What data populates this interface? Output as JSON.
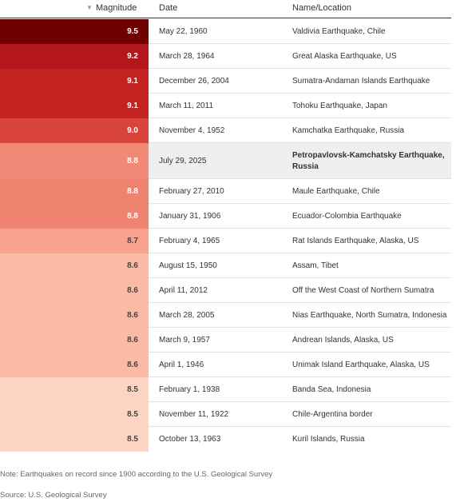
{
  "table": {
    "columns": [
      "Magnitude",
      "Date",
      "Name/Location"
    ],
    "rows": [
      {
        "cells": [
          "9.5",
          "May 22, 1960",
          "Valdivia Earthquake, Chile"
        ],
        "color": "#6e0000",
        "text_color": "#ffffff"
      },
      {
        "cells": [
          "9.2",
          "March 28, 1964",
          "Great Alaska Earthquake, US"
        ],
        "color": "#b3171b",
        "text_color": "#ffffff"
      },
      {
        "cells": [
          "9.1",
          "December 26, 2004",
          "Sumatra-Andaman Islands Earthquake"
        ],
        "color": "#c42322",
        "text_color": "#ffffff"
      },
      {
        "cells": [
          "9.1",
          "March 11, 2011",
          "Tohoku Earthquake, Japan"
        ],
        "color": "#c42322",
        "text_color": "#ffffff"
      },
      {
        "cells": [
          "9.0",
          "November 4, 1952",
          "Kamchatka Earthquake, Russia"
        ],
        "color": "#d8443a",
        "text_color": "#ffffff"
      },
      {
        "cells": [
          "8.8",
          "July 29, 2025",
          "Petropavlovsk-Kamchatsky Earthquake, Russia"
        ],
        "color": "#f08a77",
        "text_color": "#ffffff",
        "highlight": true
      },
      {
        "cells": [
          "8.8",
          "February 27, 2010",
          "Maule Earthquake, Chile"
        ],
        "color": "#ef8370",
        "text_color": "#ffffff"
      },
      {
        "cells": [
          "8.8",
          "January 31, 1906",
          "Ecuador-Colombia Earthquake"
        ],
        "color": "#ef8370",
        "text_color": "#ffffff"
      },
      {
        "cells": [
          "8.7",
          "February 4, 1965",
          "Rat Islands Earthquake, Alaska, US"
        ],
        "color": "#f7a18e",
        "text_color": "#444444"
      },
      {
        "cells": [
          "8.6",
          "August 15, 1950",
          "Assam, Tibet"
        ],
        "color": "#fbb9a6",
        "text_color": "#444444"
      },
      {
        "cells": [
          "8.6",
          "April 11, 2012",
          "Off the West Coast of Northern Sumatra"
        ],
        "color": "#fbb9a6",
        "text_color": "#444444"
      },
      {
        "cells": [
          "8.6",
          "March 28, 2005",
          "Nias Earthquake, North Sumatra, Indonesia"
        ],
        "color": "#fbb9a6",
        "text_color": "#444444"
      },
      {
        "cells": [
          "8.6",
          "March 9, 1957",
          "Andrean Islands, Alaska, US"
        ],
        "color": "#fbb9a6",
        "text_color": "#444444"
      },
      {
        "cells": [
          "8.6",
          "April 1, 1946",
          "Unimak Island Earthquake, Alaska, US"
        ],
        "color": "#fbb9a6",
        "text_color": "#444444"
      },
      {
        "cells": [
          "8.5",
          "February 1, 1938",
          "Banda Sea, Indonesia"
        ],
        "color": "#fdd4c3",
        "text_color": "#444444"
      },
      {
        "cells": [
          "8.5",
          "November 11, 1922",
          "Chile-Argentina border"
        ],
        "color": "#fdd4c3",
        "text_color": "#444444"
      },
      {
        "cells": [
          "8.5",
          "October 13, 1963",
          "Kuril Islands, Russia"
        ],
        "color": "#fdd4c3",
        "text_color": "#444444"
      }
    ]
  },
  "footer": {
    "note": "Note: Earthquakes on record since 1900 according to the U.S. Geological Survey",
    "source": "Source: U.S. Geological Survey"
  }
}
